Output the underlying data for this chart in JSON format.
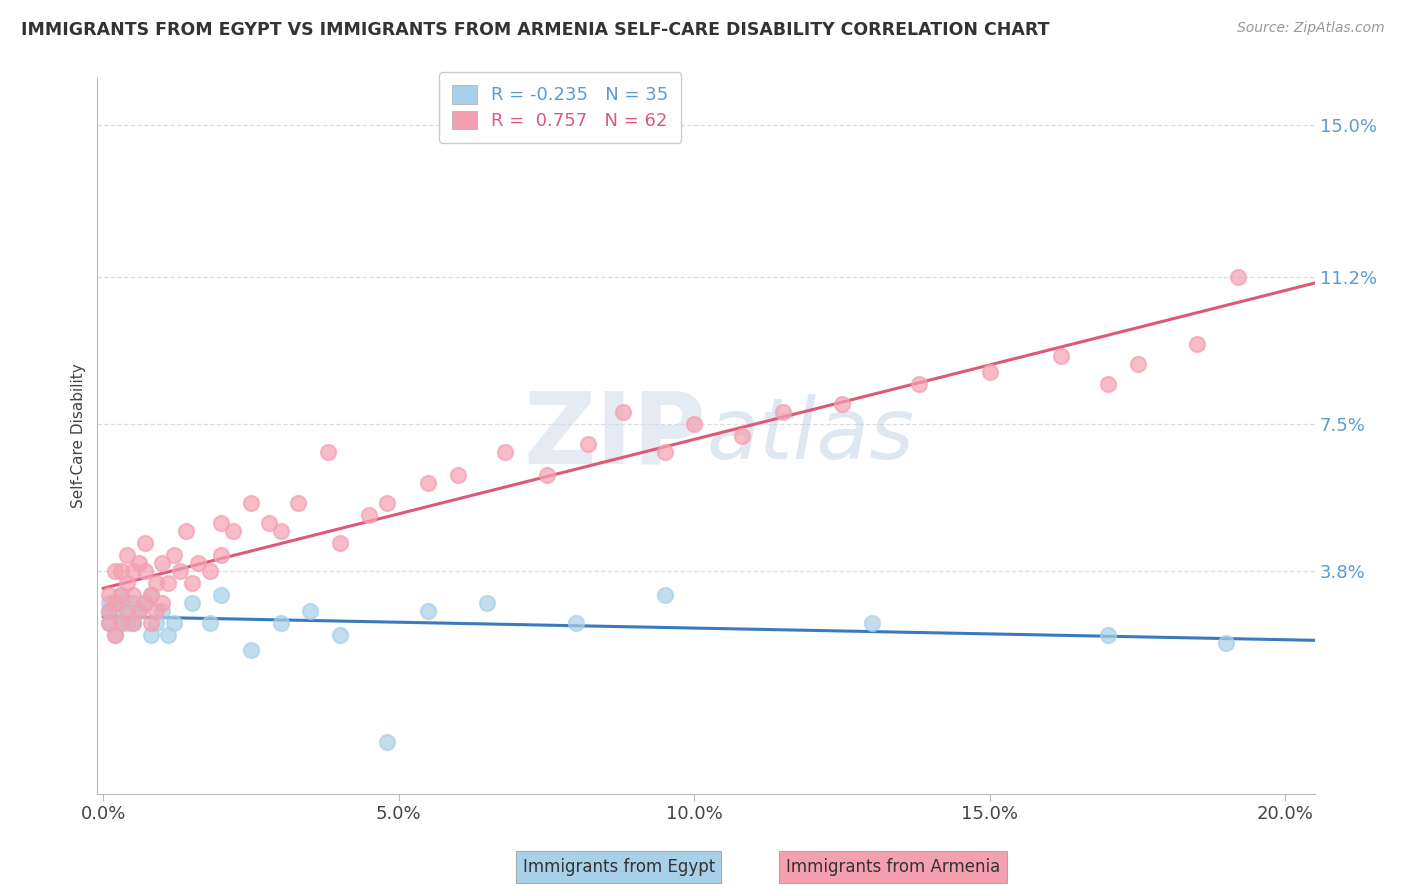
{
  "title": "IMMIGRANTS FROM EGYPT VS IMMIGRANTS FROM ARMENIA SELF-CARE DISABILITY CORRELATION CHART",
  "source": "Source: ZipAtlas.com",
  "ylabel": "Self-Care Disability",
  "xlim": [
    -0.001,
    0.205
  ],
  "ylim": [
    -0.018,
    0.162
  ],
  "ytick_vals": [
    0.038,
    0.075,
    0.112,
    0.15
  ],
  "ytick_labels": [
    "3.8%",
    "7.5%",
    "11.2%",
    "15.0%"
  ],
  "xtick_vals": [
    0.0,
    0.05,
    0.1,
    0.15,
    0.2
  ],
  "xtick_labels": [
    "0.0%",
    "5.0%",
    "10.0%",
    "15.0%",
    "20.0%"
  ],
  "egypt_dot_color": "#a8d0e8",
  "egypt_line_color": "#3a7bbf",
  "armenia_dot_color": "#f4a0b0",
  "armenia_line_color": "#e05878",
  "egypt_R": -0.235,
  "egypt_N": 35,
  "armenia_R": 0.757,
  "armenia_N": 62,
  "watermark_zip": "ZIP",
  "watermark_atlas": "atlas",
  "legend_label_egypt": "Immigrants from Egypt",
  "legend_label_armenia": "Immigrants from Armenia",
  "tick_color": "#5b9bd5",
  "egypt_x": [
    0.001,
    0.001,
    0.001,
    0.002,
    0.002,
    0.003,
    0.003,
    0.003,
    0.004,
    0.004,
    0.005,
    0.005,
    0.006,
    0.007,
    0.008,
    0.008,
    0.009,
    0.01,
    0.011,
    0.012,
    0.015,
    0.018,
    0.02,
    0.025,
    0.03,
    0.035,
    0.04,
    0.048,
    0.055,
    0.065,
    0.08,
    0.095,
    0.13,
    0.17,
    0.19
  ],
  "egypt_y": [
    0.025,
    0.028,
    0.03,
    0.022,
    0.028,
    0.025,
    0.03,
    0.032,
    0.025,
    0.028,
    0.025,
    0.03,
    0.028,
    0.03,
    0.022,
    0.032,
    0.025,
    0.028,
    0.022,
    0.025,
    0.03,
    0.025,
    0.032,
    0.018,
    0.025,
    0.028,
    0.022,
    -0.005,
    0.028,
    0.03,
    0.025,
    0.032,
    0.025,
    0.022,
    0.02
  ],
  "armenia_x": [
    0.001,
    0.001,
    0.001,
    0.002,
    0.002,
    0.002,
    0.003,
    0.003,
    0.003,
    0.004,
    0.004,
    0.004,
    0.005,
    0.005,
    0.005,
    0.006,
    0.006,
    0.007,
    0.007,
    0.007,
    0.008,
    0.008,
    0.009,
    0.009,
    0.01,
    0.01,
    0.011,
    0.012,
    0.013,
    0.014,
    0.015,
    0.016,
    0.018,
    0.02,
    0.02,
    0.022,
    0.025,
    0.028,
    0.03,
    0.033,
    0.038,
    0.04,
    0.045,
    0.048,
    0.055,
    0.06,
    0.068,
    0.075,
    0.082,
    0.088,
    0.095,
    0.1,
    0.108,
    0.115,
    0.125,
    0.138,
    0.15,
    0.162,
    0.17,
    0.175,
    0.185,
    0.192
  ],
  "armenia_y": [
    0.025,
    0.028,
    0.032,
    0.022,
    0.03,
    0.038,
    0.025,
    0.032,
    0.038,
    0.028,
    0.035,
    0.042,
    0.025,
    0.032,
    0.038,
    0.028,
    0.04,
    0.03,
    0.038,
    0.045,
    0.025,
    0.032,
    0.028,
    0.035,
    0.03,
    0.04,
    0.035,
    0.042,
    0.038,
    0.048,
    0.035,
    0.04,
    0.038,
    0.042,
    0.05,
    0.048,
    0.055,
    0.05,
    0.048,
    0.055,
    0.068,
    0.045,
    0.052,
    0.055,
    0.06,
    0.062,
    0.068,
    0.062,
    0.07,
    0.078,
    0.068,
    0.075,
    0.072,
    0.078,
    0.08,
    0.085,
    0.088,
    0.092,
    0.085,
    0.09,
    0.095,
    0.112
  ]
}
